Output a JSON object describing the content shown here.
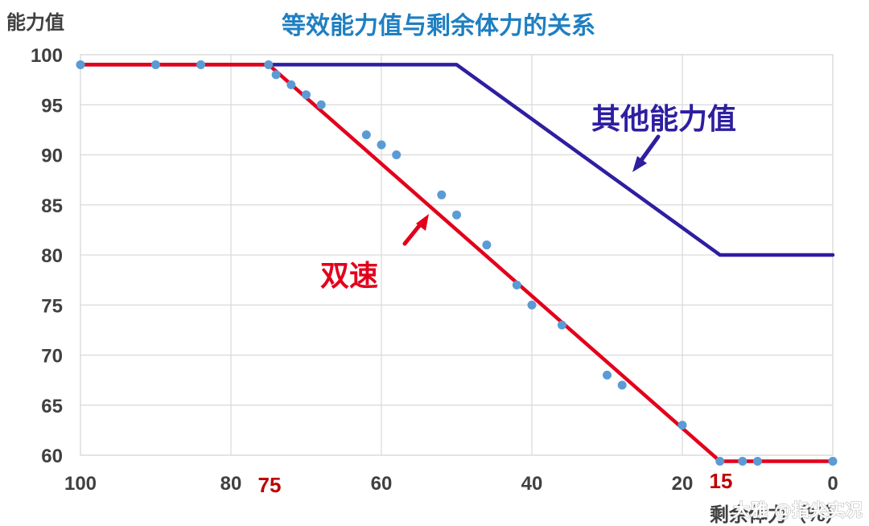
{
  "chart_data": {
    "type": "line",
    "title": "等效能力值与剩余体力的关系",
    "ylabel": "能力值",
    "xlabel": "剩余体力（%）",
    "xlim": [
      100,
      0
    ],
    "ylim": [
      60,
      100
    ],
    "x_ticks": [
      100,
      80,
      60,
      40,
      20,
      0
    ],
    "y_ticks": [
      100,
      95,
      90,
      85,
      80,
      75,
      70,
      65,
      60
    ],
    "grid": true,
    "series": [
      {
        "name": "其他能力值",
        "color": "#2e1ea0",
        "x": [
          100,
          50,
          15,
          0
        ],
        "y": [
          99,
          99,
          80,
          80
        ]
      },
      {
        "name": "双速",
        "color": "#e3001b",
        "x": [
          100,
          75,
          15,
          0
        ],
        "y": [
          99,
          99,
          59.4,
          59.4
        ]
      },
      {
        "name": "",
        "kind": "scatter",
        "color": "#5b9bd5",
        "x": [
          100,
          90,
          84,
          75,
          74,
          72,
          70,
          68,
          62,
          60,
          58,
          52,
          50,
          46,
          42,
          40,
          36,
          30,
          28,
          20,
          15,
          12,
          10,
          0
        ],
        "y": [
          99,
          99,
          99,
          99,
          98,
          97,
          96,
          95,
          92,
          91,
          90,
          86,
          84,
          81,
          77,
          75,
          73,
          68,
          67,
          63,
          59.4,
          59.4,
          59.4,
          59.4
        ]
      }
    ],
    "markers": [
      {
        "text": "75",
        "x": 75,
        "color": "#c00000"
      },
      {
        "text": "15",
        "x": 15,
        "color": "#c00000"
      }
    ],
    "annotations": [
      {
        "text": "其他能力值",
        "color": "#2e1ea0"
      },
      {
        "text": "双速",
        "color": "#e3001b"
      }
    ]
  },
  "watermark": "大雅 @指尖实况"
}
